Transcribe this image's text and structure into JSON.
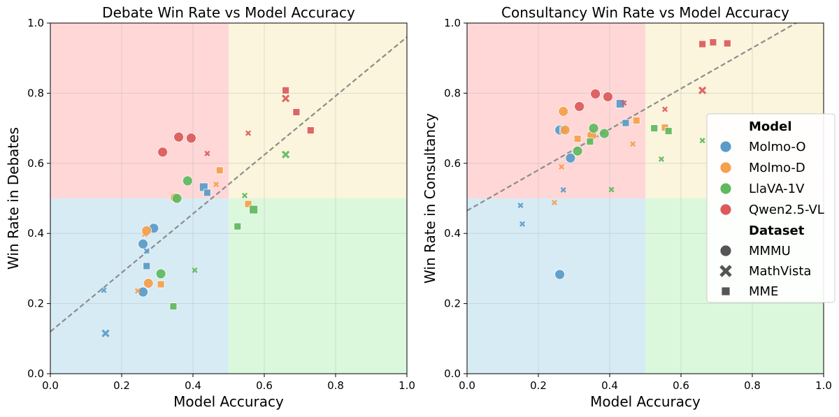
{
  "chart_data": [
    {
      "type": "scatter",
      "title": "Debate Win Rate vs Model Accuracy",
      "xlabel": "Model Accuracy",
      "ylabel": "Win Rate in Debates",
      "xlim": [
        0,
        1
      ],
      "ylim": [
        0,
        1
      ],
      "xticks": [
        "0.0",
        "0.2",
        "0.4",
        "0.6",
        "0.8",
        "1.0"
      ],
      "yticks": [
        "0.0",
        "0.2",
        "0.4",
        "0.6",
        "0.8",
        "1.0"
      ],
      "grid": true,
      "quadrants": [
        {
          "x": [
            0,
            0.5
          ],
          "y": [
            0.5,
            1
          ],
          "color": "#ffd7d7"
        },
        {
          "x": [
            0.5,
            1
          ],
          "y": [
            0.5,
            1
          ],
          "color": "#faf5dc"
        },
        {
          "x": [
            0,
            0.5
          ],
          "y": [
            0,
            0.5
          ],
          "color": "#d7ebf5"
        },
        {
          "x": [
            0.5,
            1
          ],
          "y": [
            0,
            0.5
          ],
          "color": "#dcf8dc"
        }
      ],
      "trendline": {
        "x": [
          0,
          1
        ],
        "y": [
          0.12,
          0.96
        ],
        "style": "dashed",
        "color": "#8c8c8c"
      },
      "series": [
        {
          "name": "Molmo-O",
          "color": "#5a9bc8",
          "points": [
            {
              "x": 0.26,
              "y": 0.37,
              "dataset": "MMMU",
              "size": "large"
            },
            {
              "x": 0.29,
              "y": 0.415,
              "dataset": "MMMU",
              "size": "large"
            },
            {
              "x": 0.26,
              "y": 0.233,
              "dataset": "MMMU",
              "size": "large"
            },
            {
              "x": 0.15,
              "y": 0.238,
              "dataset": "MathVista",
              "size": "small"
            },
            {
              "x": 0.155,
              "y": 0.115,
              "dataset": "MathVista",
              "size": "medium"
            },
            {
              "x": 0.27,
              "y": 0.35,
              "dataset": "MathVista",
              "size": "small"
            },
            {
              "x": 0.27,
              "y": 0.307,
              "dataset": "MME",
              "size": "medium"
            },
            {
              "x": 0.43,
              "y": 0.532,
              "dataset": "MME",
              "size": "large"
            },
            {
              "x": 0.44,
              "y": 0.516,
              "dataset": "MME",
              "size": "medium"
            }
          ]
        },
        {
          "name": "Molmo-D",
          "color": "#f5a04b",
          "points": [
            {
              "x": 0.27,
              "y": 0.408,
              "dataset": "MMMU",
              "size": "large"
            },
            {
              "x": 0.275,
              "y": 0.258,
              "dataset": "MMMU",
              "size": "large"
            },
            {
              "x": 0.35,
              "y": 0.502,
              "dataset": "MMMU",
              "size": "large"
            },
            {
              "x": 0.265,
              "y": 0.398,
              "dataset": "MathVista",
              "size": "small"
            },
            {
              "x": 0.245,
              "y": 0.236,
              "dataset": "MathVista",
              "size": "small"
            },
            {
              "x": 0.465,
              "y": 0.54,
              "dataset": "MathVista",
              "size": "small"
            },
            {
              "x": 0.475,
              "y": 0.58,
              "dataset": "MME",
              "size": "medium"
            },
            {
              "x": 0.31,
              "y": 0.255,
              "dataset": "MME",
              "size": "medium"
            },
            {
              "x": 0.555,
              "y": 0.484,
              "dataset": "MME",
              "size": "medium"
            }
          ]
        },
        {
          "name": "LlaVA-1V",
          "color": "#5fb95f",
          "points": [
            {
              "x": 0.385,
              "y": 0.55,
              "dataset": "MMMU",
              "size": "large"
            },
            {
              "x": 0.355,
              "y": 0.5,
              "dataset": "MMMU",
              "size": "large"
            },
            {
              "x": 0.31,
              "y": 0.285,
              "dataset": "MMMU",
              "size": "large"
            },
            {
              "x": 0.405,
              "y": 0.295,
              "dataset": "MathVista",
              "size": "small"
            },
            {
              "x": 0.545,
              "y": 0.508,
              "dataset": "MathVista",
              "size": "small"
            },
            {
              "x": 0.66,
              "y": 0.625,
              "dataset": "MathVista",
              "size": "medium"
            },
            {
              "x": 0.345,
              "y": 0.192,
              "dataset": "MME",
              "size": "medium"
            },
            {
              "x": 0.525,
              "y": 0.42,
              "dataset": "MME",
              "size": "medium"
            },
            {
              "x": 0.57,
              "y": 0.468,
              "dataset": "MME",
              "size": "large"
            }
          ]
        },
        {
          "name": "Qwen2.5-VL",
          "color": "#dc5a5a",
          "points": [
            {
              "x": 0.315,
              "y": 0.632,
              "dataset": "MMMU",
              "size": "large"
            },
            {
              "x": 0.36,
              "y": 0.675,
              "dataset": "MMMU",
              "size": "large"
            },
            {
              "x": 0.395,
              "y": 0.672,
              "dataset": "MMMU",
              "size": "large"
            },
            {
              "x": 0.44,
              "y": 0.628,
              "dataset": "MathVista",
              "size": "small"
            },
            {
              "x": 0.555,
              "y": 0.686,
              "dataset": "MathVista",
              "size": "small"
            },
            {
              "x": 0.66,
              "y": 0.785,
              "dataset": "MathVista",
              "size": "medium"
            },
            {
              "x": 0.66,
              "y": 0.808,
              "dataset": "MME",
              "size": "medium"
            },
            {
              "x": 0.69,
              "y": 0.746,
              "dataset": "MME",
              "size": "medium"
            },
            {
              "x": 0.73,
              "y": 0.694,
              "dataset": "MME",
              "size": "medium"
            }
          ]
        }
      ]
    },
    {
      "type": "scatter",
      "title": "Consultancy Win Rate vs Model Accuracy",
      "xlabel": "Model Accuracy",
      "ylabel": "Win Rate in Consultancy",
      "xlim": [
        0,
        1
      ],
      "ylim": [
        0,
        1
      ],
      "xticks": [
        "0.0",
        "0.2",
        "0.4",
        "0.6",
        "0.8",
        "1.0"
      ],
      "yticks": [
        "0.0",
        "0.2",
        "0.4",
        "0.6",
        "0.8",
        "1.0"
      ],
      "grid": true,
      "quadrants": [
        {
          "x": [
            0,
            0.5
          ],
          "y": [
            0.5,
            1
          ],
          "color": "#ffd7d7"
        },
        {
          "x": [
            0.5,
            1
          ],
          "y": [
            0.5,
            1
          ],
          "color": "#faf5dc"
        },
        {
          "x": [
            0,
            0.5
          ],
          "y": [
            0,
            0.5
          ],
          "color": "#d7ebf5"
        },
        {
          "x": [
            0.5,
            1
          ],
          "y": [
            0,
            0.5
          ],
          "color": "#dcf8dc"
        }
      ],
      "trendline": {
        "x": [
          0,
          1
        ],
        "y": [
          0.465,
          1.045
        ],
        "style": "dashed",
        "color": "#8c8c8c"
      },
      "series": [
        {
          "name": "Molmo-O",
          "color": "#5a9bc8",
          "points": [
            {
              "x": 0.26,
              "y": 0.695,
              "dataset": "MMMU",
              "size": "large"
            },
            {
              "x": 0.29,
              "y": 0.615,
              "dataset": "MMMU",
              "size": "large"
            },
            {
              "x": 0.26,
              "y": 0.283,
              "dataset": "MMMU",
              "size": "large"
            },
            {
              "x": 0.15,
              "y": 0.48,
              "dataset": "MathVista",
              "size": "small"
            },
            {
              "x": 0.155,
              "y": 0.427,
              "dataset": "MathVista",
              "size": "small"
            },
            {
              "x": 0.27,
              "y": 0.524,
              "dataset": "MathVista",
              "size": "small"
            },
            {
              "x": 0.27,
              "y": 0.695,
              "dataset": "MME",
              "size": "medium"
            },
            {
              "x": 0.43,
              "y": 0.77,
              "dataset": "MME",
              "size": "large"
            },
            {
              "x": 0.445,
              "y": 0.715,
              "dataset": "MME",
              "size": "medium"
            }
          ]
        },
        {
          "name": "Molmo-D",
          "color": "#f5a04b",
          "points": [
            {
              "x": 0.27,
              "y": 0.748,
              "dataset": "MMMU",
              "size": "large"
            },
            {
              "x": 0.275,
              "y": 0.695,
              "dataset": "MMMU",
              "size": "large"
            },
            {
              "x": 0.35,
              "y": 0.68,
              "dataset": "MMMU",
              "size": "large"
            },
            {
              "x": 0.265,
              "y": 0.59,
              "dataset": "MathVista",
              "size": "small"
            },
            {
              "x": 0.245,
              "y": 0.488,
              "dataset": "MathVista",
              "size": "small"
            },
            {
              "x": 0.465,
              "y": 0.655,
              "dataset": "MathVista",
              "size": "small"
            },
            {
              "x": 0.475,
              "y": 0.722,
              "dataset": "MME",
              "size": "medium"
            },
            {
              "x": 0.31,
              "y": 0.67,
              "dataset": "MME",
              "size": "medium"
            },
            {
              "x": 0.555,
              "y": 0.702,
              "dataset": "MME",
              "size": "medium"
            }
          ]
        },
        {
          "name": "LlaVA-1V",
          "color": "#5fb95f",
          "points": [
            {
              "x": 0.385,
              "y": 0.685,
              "dataset": "MMMU",
              "size": "large"
            },
            {
              "x": 0.355,
              "y": 0.7,
              "dataset": "MMMU",
              "size": "large"
            },
            {
              "x": 0.31,
              "y": 0.635,
              "dataset": "MMMU",
              "size": "large"
            },
            {
              "x": 0.405,
              "y": 0.525,
              "dataset": "MathVista",
              "size": "small"
            },
            {
              "x": 0.545,
              "y": 0.612,
              "dataset": "MathVista",
              "size": "small"
            },
            {
              "x": 0.66,
              "y": 0.665,
              "dataset": "MathVista",
              "size": "small"
            },
            {
              "x": 0.345,
              "y": 0.662,
              "dataset": "MME",
              "size": "medium"
            },
            {
              "x": 0.525,
              "y": 0.7,
              "dataset": "MME",
              "size": "medium"
            },
            {
              "x": 0.565,
              "y": 0.692,
              "dataset": "MME",
              "size": "medium"
            }
          ]
        },
        {
          "name": "Qwen2.5-VL",
          "color": "#dc5a5a",
          "points": [
            {
              "x": 0.315,
              "y": 0.762,
              "dataset": "MMMU",
              "size": "large"
            },
            {
              "x": 0.36,
              "y": 0.798,
              "dataset": "MMMU",
              "size": "large"
            },
            {
              "x": 0.395,
              "y": 0.79,
              "dataset": "MMMU",
              "size": "large"
            },
            {
              "x": 0.44,
              "y": 0.772,
              "dataset": "MathVista",
              "size": "small"
            },
            {
              "x": 0.555,
              "y": 0.754,
              "dataset": "MathVista",
              "size": "small"
            },
            {
              "x": 0.66,
              "y": 0.808,
              "dataset": "MathVista",
              "size": "medium"
            },
            {
              "x": 0.66,
              "y": 0.94,
              "dataset": "MME",
              "size": "medium"
            },
            {
              "x": 0.69,
              "y": 0.945,
              "dataset": "MME",
              "size": "medium"
            },
            {
              "x": 0.73,
              "y": 0.942,
              "dataset": "MME",
              "size": "medium"
            }
          ]
        }
      ]
    }
  ],
  "legend": {
    "placement": "right of second plot",
    "model_title": "Model",
    "models": [
      {
        "label": "Molmo-O",
        "color": "#5a9bc8"
      },
      {
        "label": "Molmo-D",
        "color": "#f5a04b"
      },
      {
        "label": "LlaVA-1V",
        "color": "#5fb95f"
      },
      {
        "label": "Qwen2.5-VL",
        "color": "#dc5a5a"
      }
    ],
    "dataset_title": "Dataset",
    "datasets": [
      {
        "label": "MMMU",
        "marker": "circle"
      },
      {
        "label": "MathVista",
        "marker": "cross"
      },
      {
        "label": "MME",
        "marker": "square"
      }
    ],
    "marker_color": "#555555"
  }
}
